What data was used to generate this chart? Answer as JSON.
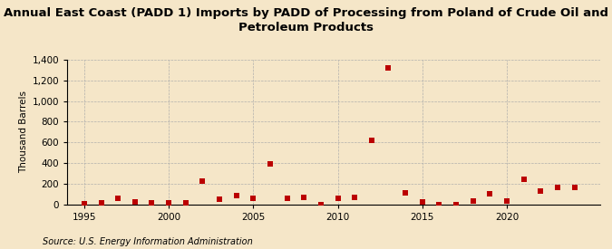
{
  "title": "Annual East Coast (PADD 1) Imports by PADD of Processing from Poland of Crude Oil and\nPetroleum Products",
  "ylabel": "Thousand Barrels",
  "source": "Source: U.S. Energy Information Administration",
  "background_color": "#f5e6c8",
  "years": [
    1995,
    1996,
    1997,
    1998,
    1999,
    2000,
    2001,
    2002,
    2003,
    2004,
    2005,
    2006,
    2007,
    2008,
    2009,
    2010,
    2011,
    2012,
    2013,
    2014,
    2015,
    2016,
    2017,
    2018,
    2019,
    2020,
    2021,
    2022,
    2023,
    2024
  ],
  "values": [
    5,
    10,
    55,
    20,
    10,
    15,
    10,
    220,
    50,
    80,
    55,
    390,
    55,
    65,
    0,
    60,
    70,
    620,
    1320,
    110,
    20,
    0,
    0,
    30,
    100,
    30,
    240,
    130,
    160,
    160
  ],
  "marker_color": "#bb0000",
  "marker_size": 14,
  "ylim": [
    0,
    1400
  ],
  "yticks": [
    0,
    200,
    400,
    600,
    800,
    1000,
    1200,
    1400
  ],
  "xlim": [
    1994.0,
    2025.5
  ],
  "xticks": [
    1995,
    2000,
    2005,
    2010,
    2015,
    2020
  ],
  "grid_color": "#aaaaaa",
  "title_fontsize": 9.5,
  "ylabel_fontsize": 7.5,
  "tick_fontsize": 7.5,
  "source_fontsize": 7.0
}
